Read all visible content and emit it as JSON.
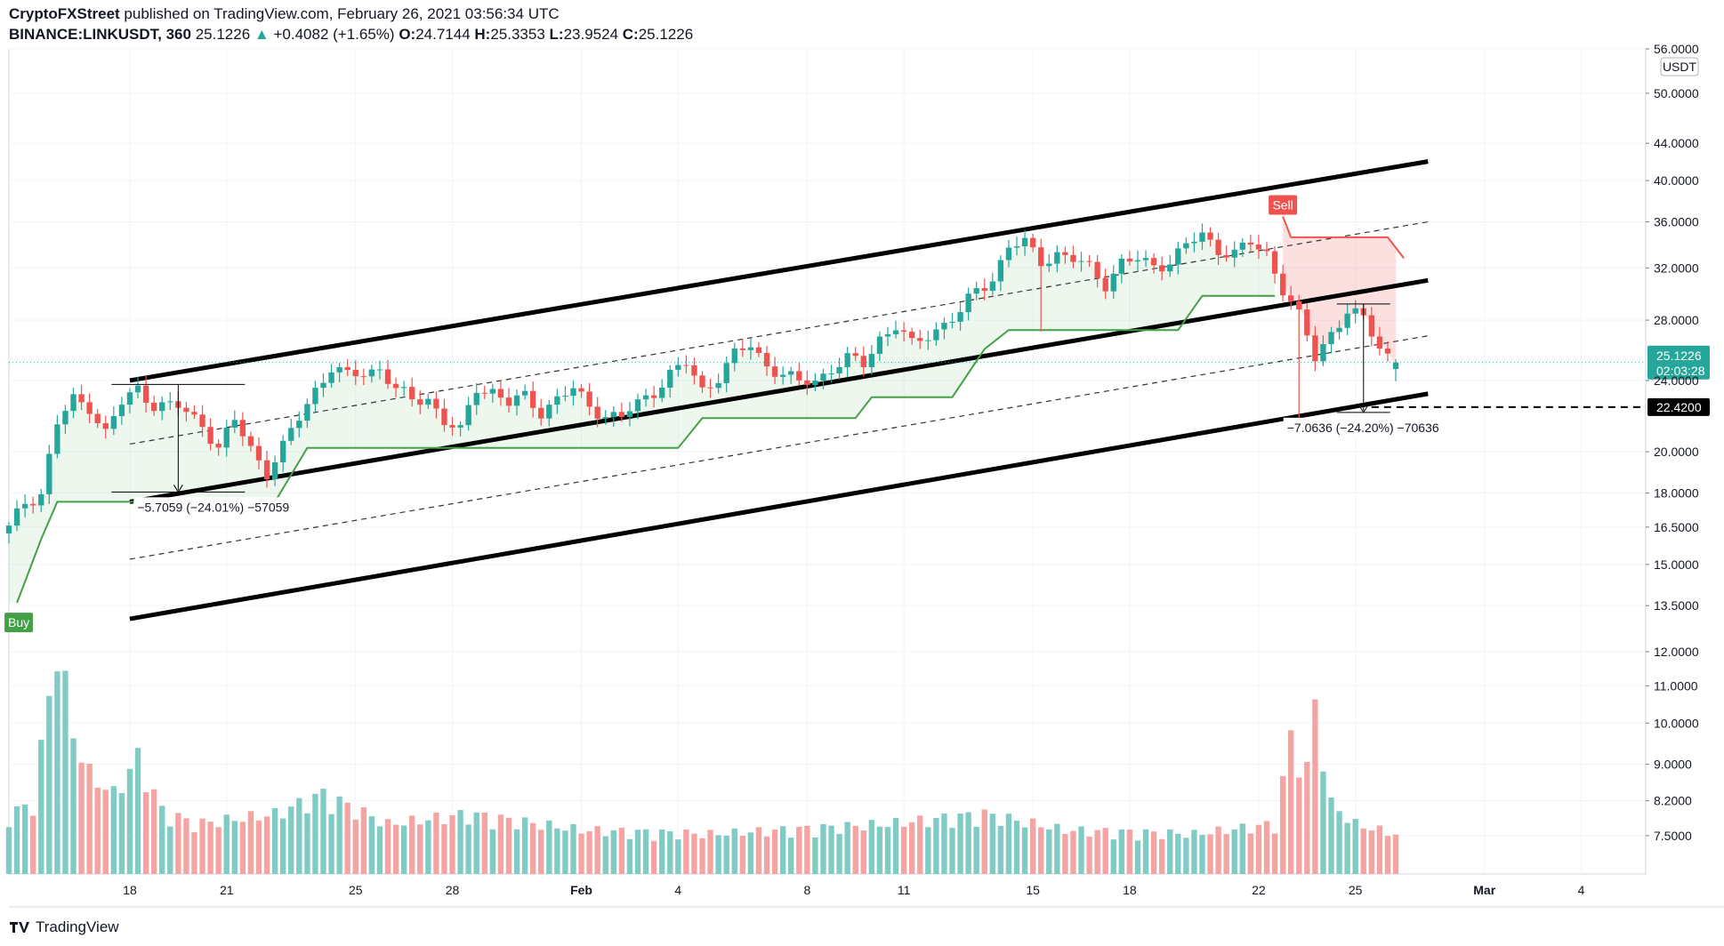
{
  "header": {
    "publisher": "CryptoFXStreet",
    "published_text": "published on TradingView.com, February 26, 2021 03:56:34 UTC",
    "symbol": "BINANCE:LINKUSDT, 360",
    "last": "25.1226",
    "change": "+0.4082 (+1.65%)",
    "o_label": "O:",
    "o": "24.7144",
    "h_label": "H:",
    "h": "25.3353",
    "l_label": "L:",
    "l": "23.9524",
    "c_label": "C:",
    "c": "25.1226"
  },
  "footer": {
    "brand": "TradingView"
  },
  "colors": {
    "up": "#26a69a",
    "down": "#ef5350",
    "supertrend_up": "#43a047",
    "supertrend_down": "#ef5350"
  },
  "chart_data": {
    "type": "candlestick",
    "currency": "USDT",
    "y_scale": "log",
    "ylim": [
      6.8,
      56
    ],
    "y_ticks": [
      "56.0000",
      "50.0000",
      "44.0000",
      "40.0000",
      "36.0000",
      "32.0000",
      "28.0000",
      "24.0000",
      "20.0000",
      "18.0000",
      "16.5000",
      "15.0000",
      "13.5000",
      "12.0000",
      "11.0000",
      "10.0000",
      "9.0000",
      "8.2000",
      "7.5000"
    ],
    "y_tick_values": [
      56,
      50,
      44,
      40,
      36,
      32,
      28,
      24,
      20,
      18,
      16.5,
      15,
      13.5,
      12,
      11,
      10,
      9,
      8.2,
      7.5
    ],
    "x_ticks": [
      "18",
      "21",
      "25",
      "28",
      "Feb",
      "4",
      "8",
      "11",
      "15",
      "18",
      "22",
      "25",
      "Mar",
      "4"
    ],
    "x_tick_dates": [
      "2021-01-18",
      "2021-01-21",
      "2021-01-25",
      "2021-01-28",
      "2021-02-01",
      "2021-02-04",
      "2021-02-08",
      "2021-02-11",
      "2021-02-15",
      "2021-02-18",
      "2021-02-22",
      "2021-02-25",
      "2021-03-01",
      "2021-03-04"
    ],
    "x_range": [
      "2021-01-14T06:00",
      "2021-03-06"
    ],
    "last_price_label": "25.1226",
    "countdown_label": "02:03:28",
    "level_label": "22.4200",
    "level_value": 22.42,
    "signals": [
      {
        "label": "Buy",
        "date": "2021-01-14T12:00",
        "value": 13.5
      },
      {
        "label": "Sell",
        "date": "2021-02-22T18:00",
        "value": 37.5
      }
    ],
    "measurements": [
      {
        "label": "−5.7059 (−24.01%) −57059",
        "from_date": "2021-01-19T12:00",
        "from_value": 23.76,
        "to_value": 18.05
      },
      {
        "label": "−7.0636 (−24.20%) −70636",
        "from_date": "2021-02-25T06:00",
        "from_value": 29.18,
        "to_value": 22.12
      }
    ],
    "channel_lines": [
      {
        "name": "upper",
        "style": "solid",
        "points": [
          [
            "2021-01-18",
            24.0
          ],
          [
            "2021-02-27T06:00",
            42.0
          ]
        ]
      },
      {
        "name": "upper-mid",
        "style": "dashed",
        "points": [
          [
            "2021-01-18",
            20.4
          ],
          [
            "2021-02-27T06:00",
            36.0
          ]
        ]
      },
      {
        "name": "middle",
        "style": "solid",
        "points": [
          [
            "2021-01-18",
            17.6
          ],
          [
            "2021-02-27T06:00",
            31.0
          ]
        ]
      },
      {
        "name": "lower-mid",
        "style": "dashed",
        "points": [
          [
            "2021-01-18",
            15.2
          ],
          [
            "2021-02-27T06:00",
            26.9
          ]
        ]
      },
      {
        "name": "lower",
        "style": "solid",
        "points": [
          [
            "2021-01-18",
            13.05
          ],
          [
            "2021-02-27T06:00",
            23.2
          ]
        ]
      }
    ],
    "candles": [],
    "candle_key_points": [
      [
        "2021-01-14T06:00",
        16.4
      ],
      [
        "2021-01-14T18:00",
        17.6
      ],
      [
        "2021-01-15T06:00",
        18.0
      ],
      [
        "2021-01-15T18:00",
        21.5
      ],
      [
        "2021-01-16T06:00",
        22.8
      ],
      [
        "2021-01-16T18:00",
        22.5
      ],
      [
        "2021-01-17T06:00",
        21.0
      ],
      [
        "2021-01-17T18:00",
        22.6
      ],
      [
        "2021-01-18T06:00",
        23.5
      ],
      [
        "2021-01-18T18:00",
        22.6
      ],
      [
        "2021-01-19T12:00",
        22.4
      ],
      [
        "2021-01-20T06:00",
        21.5
      ],
      [
        "2021-01-20T18:00",
        20.2
      ],
      [
        "2021-01-21T06:00",
        21.6
      ],
      [
        "2021-01-21T18:00",
        20.2
      ],
      [
        "2021-01-22T06:00",
        19.0
      ],
      [
        "2021-01-22T18:00",
        20.2
      ],
      [
        "2021-01-23T06:00",
        21.8
      ],
      [
        "2021-01-23T18:00",
        23.5
      ],
      [
        "2021-01-24T06:00",
        24.8
      ],
      [
        "2021-01-24T18:00",
        24.2
      ],
      [
        "2021-01-25T06:00",
        24.5
      ],
      [
        "2021-01-25T18:00",
        24.8
      ],
      [
        "2021-01-26T06:00",
        23.4
      ],
      [
        "2021-01-26T18:00",
        22.8
      ],
      [
        "2021-01-27T06:00",
        23.0
      ],
      [
        "2021-01-27T18:00",
        21.6
      ],
      [
        "2021-01-28T06:00",
        21.0
      ],
      [
        "2021-01-28T18:00",
        23.6
      ],
      [
        "2021-01-29T06:00",
        23.4
      ],
      [
        "2021-01-29T18:00",
        22.6
      ],
      [
        "2021-01-30T06:00",
        23.0
      ],
      [
        "2021-01-30T18:00",
        22.2
      ],
      [
        "2021-01-31T06:00",
        22.9
      ],
      [
        "2021-01-31T18:00",
        23.4
      ],
      [
        "2021-02-01T06:00",
        22.5
      ],
      [
        "2021-02-01T18:00",
        22.0
      ],
      [
        "2021-02-02T06:00",
        21.8
      ],
      [
        "2021-02-02T18:00",
        22.6
      ],
      [
        "2021-02-03T06:00",
        23.4
      ],
      [
        "2021-02-03T18:00",
        24.4
      ],
      [
        "2021-02-04T06:00",
        25.0
      ],
      [
        "2021-02-04T18:00",
        23.4
      ],
      [
        "2021-02-05T06:00",
        24.3
      ],
      [
        "2021-02-05T18:00",
        25.6
      ],
      [
        "2021-02-06T06:00",
        26.2
      ],
      [
        "2021-02-06T18:00",
        25.0
      ],
      [
        "2021-02-07T06:00",
        24.4
      ],
      [
        "2021-02-07T18:00",
        23.8
      ],
      [
        "2021-02-08T06:00",
        24.0
      ],
      [
        "2021-02-08T18:00",
        24.8
      ],
      [
        "2021-02-09T06:00",
        25.3
      ],
      [
        "2021-02-09T18:00",
        25.0
      ],
      [
        "2021-02-10T06:00",
        26.8
      ],
      [
        "2021-02-10T18:00",
        27.6
      ],
      [
        "2021-02-11T06:00",
        26.2
      ],
      [
        "2021-02-11T18:00",
        27.0
      ],
      [
        "2021-02-12T06:00",
        27.8
      ],
      [
        "2021-02-12T18:00",
        28.5
      ],
      [
        "2021-02-13T06:00",
        30.2
      ],
      [
        "2021-02-13T18:00",
        31.2
      ],
      [
        "2021-02-14T06:00",
        33.8
      ],
      [
        "2021-02-14T18:00",
        34.0
      ],
      [
        "2021-02-15T06:00",
        32.6
      ],
      [
        "2021-02-15T18:00",
        33.2
      ],
      [
        "2021-02-16T06:00",
        32.6
      ],
      [
        "2021-02-16T18:00",
        32.0
      ],
      [
        "2021-02-17T06:00",
        30.8
      ],
      [
        "2021-02-17T18:00",
        32.4
      ],
      [
        "2021-02-18T06:00",
        32.6
      ],
      [
        "2021-02-18T18:00",
        32.2
      ],
      [
        "2021-02-19T06:00",
        32.6
      ],
      [
        "2021-02-19T18:00",
        33.8
      ],
      [
        "2021-02-20T06:00",
        34.8
      ],
      [
        "2021-02-20T18:00",
        33.6
      ],
      [
        "2021-02-21T06:00",
        33.2
      ],
      [
        "2021-02-21T18:00",
        34.0
      ],
      [
        "2021-02-22T06:00",
        33.2
      ],
      [
        "2021-02-22T18:00",
        30.4
      ],
      [
        "2021-02-23T06:00",
        28.2
      ],
      [
        "2021-02-23T18:00",
        25.4
      ],
      [
        "2021-02-24T06:00",
        27.2
      ],
      [
        "2021-02-24T18:00",
        28.6
      ],
      [
        "2021-02-25T06:00",
        28.0
      ],
      [
        "2021-02-25T18:00",
        26.2
      ],
      [
        "2021-02-26T06:00",
        25.12
      ]
    ],
    "supertrend_up": [
      [
        "2021-01-14T12:00",
        13.6
      ],
      [
        "2021-01-15T06:00",
        16.0
      ],
      [
        "2021-01-15T18:00",
        17.6
      ],
      [
        "2021-01-22T12:00",
        17.6
      ],
      [
        "2021-01-23T12:00",
        20.2
      ],
      [
        "2021-01-29T12:00",
        20.2
      ],
      [
        "2021-02-04T00:00",
        20.2
      ],
      [
        "2021-02-04T18:00",
        21.8
      ],
      [
        "2021-02-09T12:00",
        21.8
      ],
      [
        "2021-02-10T00:00",
        23.0
      ],
      [
        "2021-02-12T12:00",
        23.0
      ],
      [
        "2021-02-13T12:00",
        26.0
      ],
      [
        "2021-02-14T06:00",
        27.3
      ],
      [
        "2021-02-19T12:00",
        27.3
      ],
      [
        "2021-02-20T06:00",
        29.8
      ],
      [
        "2021-02-22T12:00",
        29.8
      ]
    ],
    "supertrend_down": [
      [
        "2021-02-22T18:00",
        36.5
      ],
      [
        "2021-02-23T00:00",
        34.6
      ],
      [
        "2021-02-26T00:00",
        34.6
      ],
      [
        "2021-02-26T12:00",
        32.8
      ]
    ],
    "volume_ylim": [
      0,
      120
    ],
    "volume_key_points": [
      [
        "2021-01-14T06:00",
        30
      ],
      [
        "2021-01-15T00:00",
        35
      ],
      [
        "2021-01-15T18:00",
        115
      ],
      [
        "2021-01-16T06:00",
        70
      ],
      [
        "2021-01-16T18:00",
        50
      ],
      [
        "2021-01-17T12:00",
        40
      ],
      [
        "2021-01-18T06:00",
        58
      ],
      [
        "2021-01-19T00:00",
        32
      ],
      [
        "2021-01-20T00:00",
        25
      ],
      [
        "2021-01-22T12:00",
        30
      ],
      [
        "2021-01-24T00:00",
        40
      ],
      [
        "2021-01-26T00:00",
        25
      ],
      [
        "2021-01-28T12:00",
        30
      ],
      [
        "2021-02-01T00:00",
        22
      ],
      [
        "2021-02-05T00:00",
        20
      ],
      [
        "2021-02-10T12:00",
        25
      ],
      [
        "2021-02-13T12:00",
        30
      ],
      [
        "2021-02-16T00:00",
        22
      ],
      [
        "2021-02-20T00:00",
        20
      ],
      [
        "2021-02-22T12:00",
        25
      ],
      [
        "2021-02-23T00:00",
        68
      ],
      [
        "2021-02-23T12:00",
        52
      ],
      [
        "2021-02-23T18:00",
        85
      ],
      [
        "2021-02-24T06:00",
        35
      ],
      [
        "2021-02-25T00:00",
        25
      ],
      [
        "2021-02-26T06:00",
        20
      ]
    ]
  }
}
